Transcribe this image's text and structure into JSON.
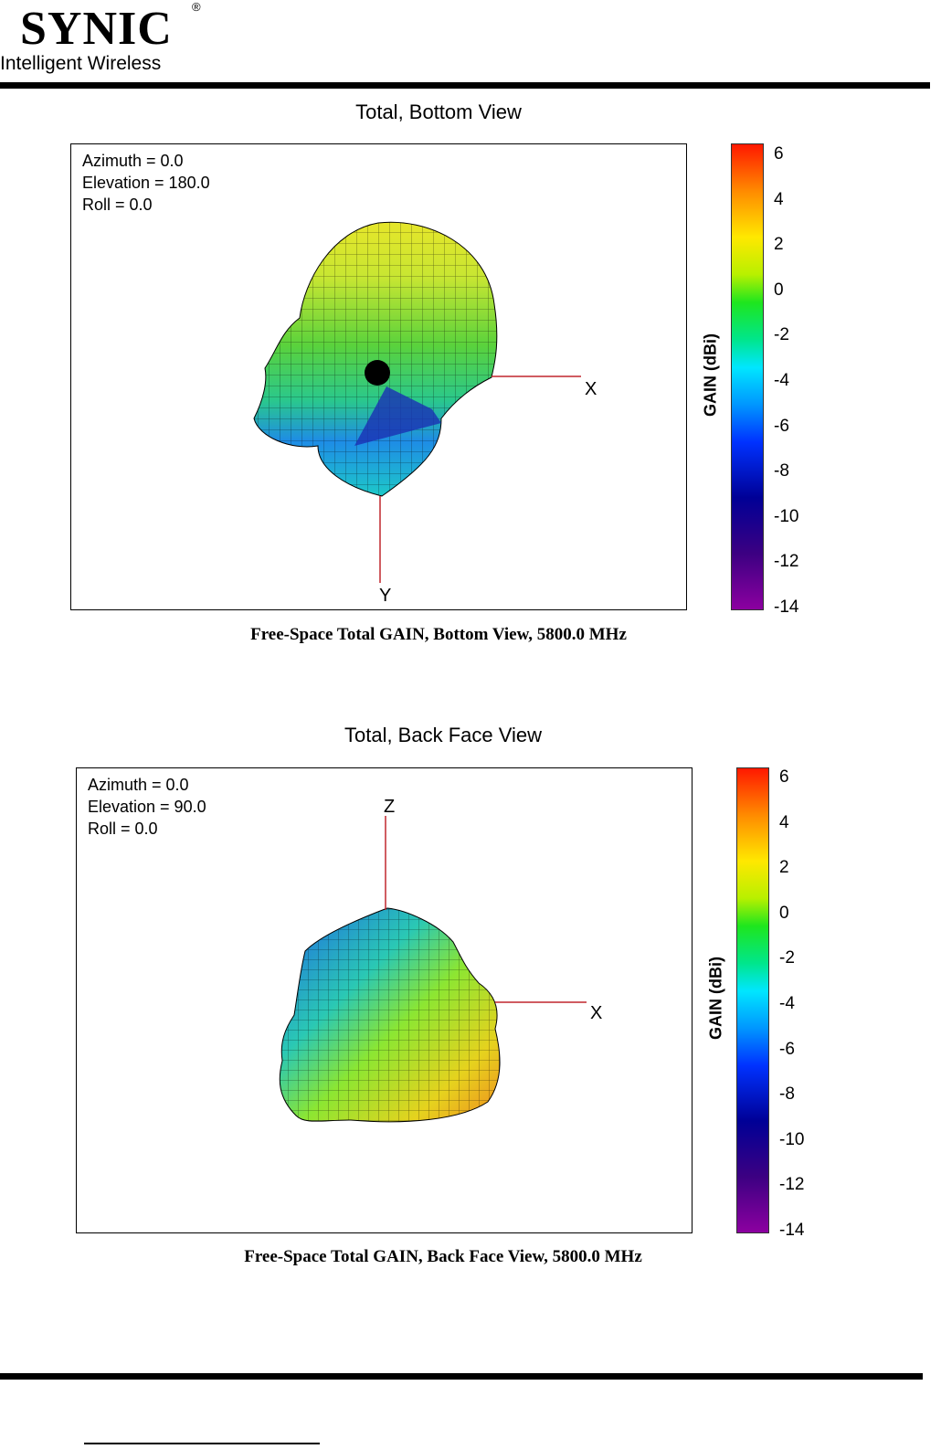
{
  "header": {
    "brand": "SYNIC",
    "registered": "®",
    "tagline": "Intelligent Wireless"
  },
  "colors": {
    "rule": "#000000",
    "axis_line": "#c0272d"
  },
  "panels": [
    {
      "title": "Total, Bottom View",
      "azimuth": "Azimuth = 0.0",
      "elevation": "Elevation = 180.0",
      "roll": "Roll = 0.0",
      "axis_h": "X",
      "axis_v": "Y",
      "colorbar_label": "GAIN  (dBi)",
      "caption": "Free-Space Total GAIN, Bottom View, 5800.0 MHz"
    },
    {
      "title": "Total, Back Face View",
      "azimuth": "Azimuth = 0.0",
      "elevation": "Elevation = 90.0",
      "roll": "Roll = 0.0",
      "axis_h": "X",
      "axis_v": "Z",
      "colorbar_label": "GAIN  (dBi)",
      "caption": "Free-Space Total GAIN, Back Face View, 5800.0 MHz"
    }
  ],
  "colorbar_ticks": [
    "6",
    "4",
    "2",
    "0",
    "-2",
    "-4",
    "-6",
    "-8",
    "-10",
    "-12",
    "-14"
  ]
}
